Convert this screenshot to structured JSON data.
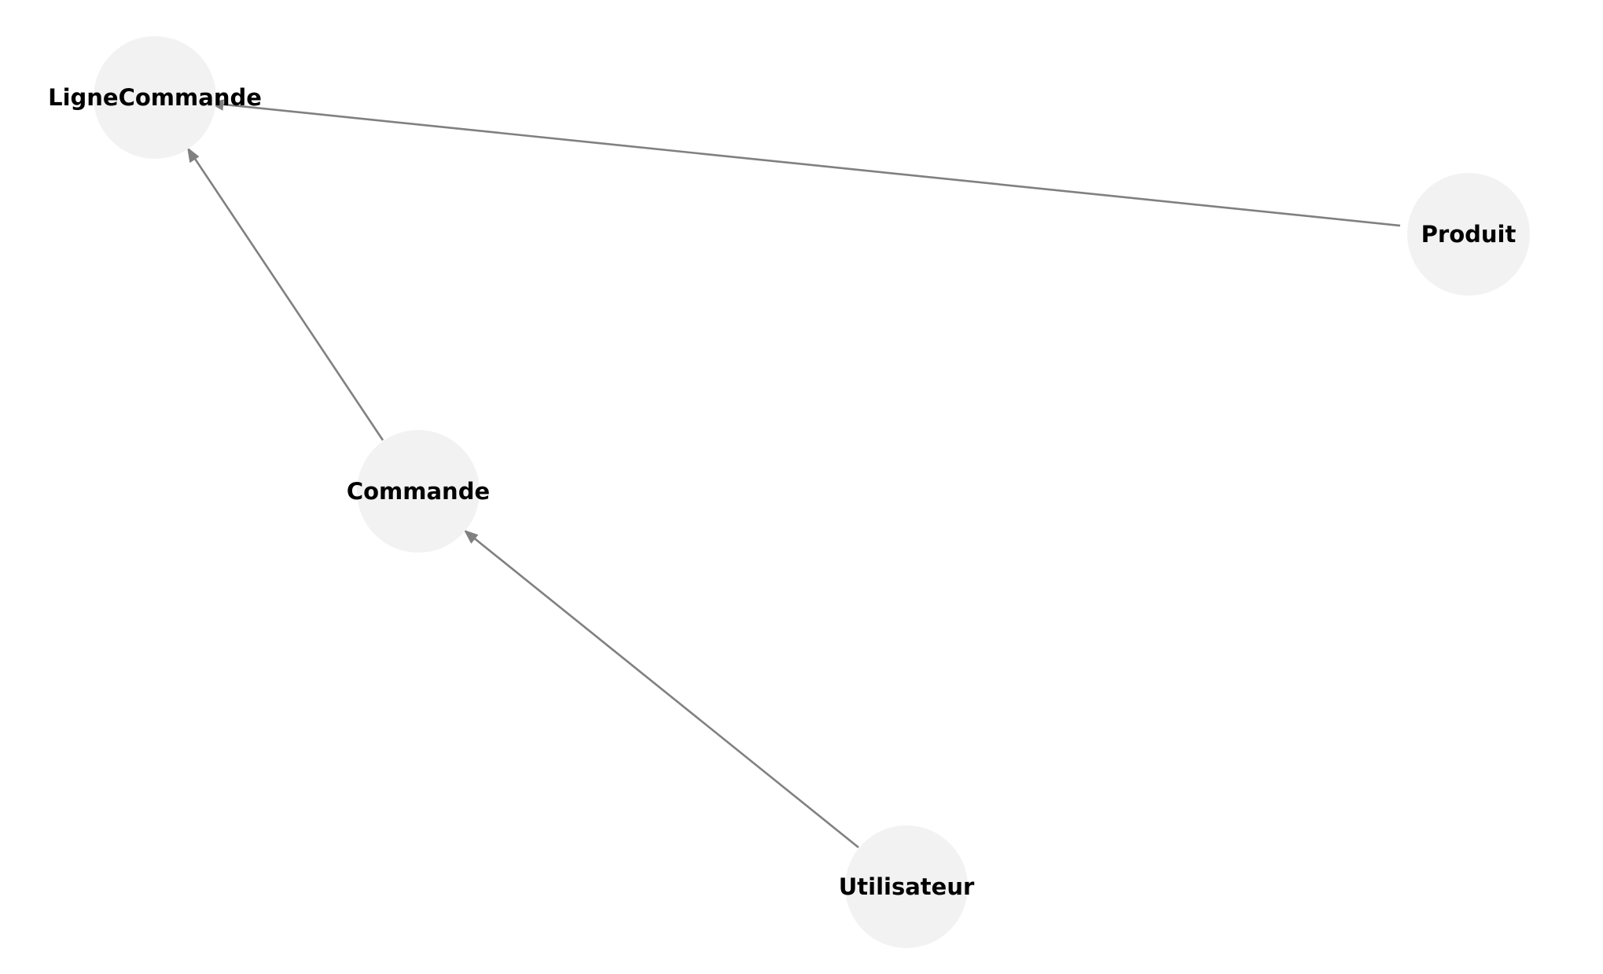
{
  "diagram": {
    "nodes": {
      "lignecommande": {
        "label": "LigneCommande"
      },
      "produit": {
        "label": "Produit"
      },
      "commande": {
        "label": "Commande"
      },
      "utilisateur": {
        "label": "Utilisateur"
      }
    },
    "edges": [
      {
        "from": "produit",
        "to": "lignecommande"
      },
      {
        "from": "commande",
        "to": "lignecommande"
      },
      {
        "from": "utilisateur",
        "to": "commande"
      }
    ],
    "colors": {
      "node_fill": "#f2f2f2",
      "edge": "#808080",
      "label": "#000000"
    }
  }
}
